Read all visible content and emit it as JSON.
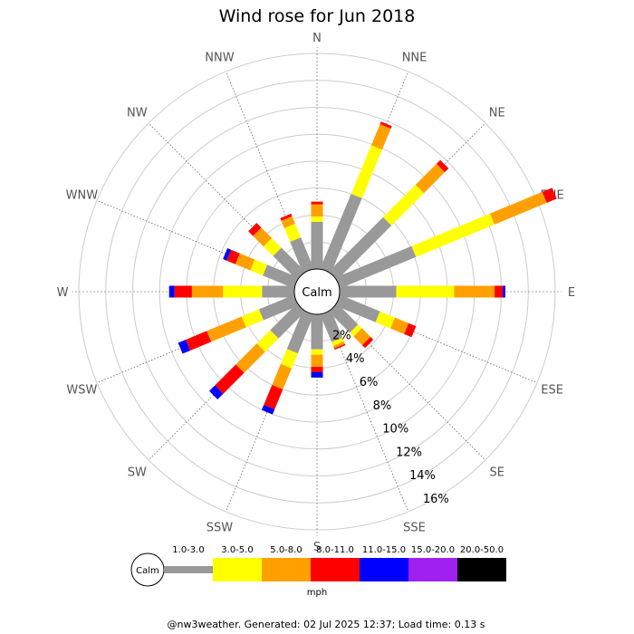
{
  "chart_data": {
    "type": "wind-rose",
    "title": "Wind rose for Jun 2018",
    "directions": [
      "N",
      "NNE",
      "NE",
      "ENE",
      "E",
      "ESE",
      "SE",
      "SSE",
      "S",
      "SSW",
      "SW",
      "WSW",
      "W",
      "WNW",
      "NW",
      "NNW"
    ],
    "center_label": "Calm",
    "ring_labels": [
      "2%",
      "4%",
      "6%",
      "8%",
      "10%",
      "12%",
      "14%",
      "16%"
    ],
    "rlim": [
      0,
      16
    ],
    "units": "mph",
    "speed_bins": [
      {
        "name": "1.0-3.0",
        "color": "#999999"
      },
      {
        "name": "3.0-5.0",
        "color": "#ffff00"
      },
      {
        "name": "5.0-8.0",
        "color": "#ffa000"
      },
      {
        "name": "8.0-11.0",
        "color": "#ff0000"
      },
      {
        "name": "11.0-15.0",
        "color": "#0000ff"
      },
      {
        "name": "15.0-20.0",
        "color": "#a020f0"
      },
      {
        "name": "20.0-50.0",
        "color": "#000000"
      }
    ],
    "series": [
      {
        "dir": "N",
        "values": [
          3.5,
          0.4,
          0.9,
          0.2,
          0,
          0,
          0
        ]
      },
      {
        "dir": "NNE",
        "values": [
          6.0,
          3.9,
          1.7,
          0.2,
          0,
          0,
          0
        ]
      },
      {
        "dir": "NE",
        "values": [
          5.7,
          3.4,
          2.2,
          0.4,
          0,
          0,
          0
        ]
      },
      {
        "dir": "ENE",
        "values": [
          6.1,
          6.3,
          4.2,
          0.8,
          0,
          0,
          0
        ]
      },
      {
        "dir": "E",
        "values": [
          4.2,
          4.3,
          3.0,
          0.6,
          0.2,
          0,
          0
        ]
      },
      {
        "dir": "ESE",
        "values": [
          3.2,
          1.2,
          1.1,
          0.6,
          0,
          0,
          0
        ]
      },
      {
        "dir": "SE",
        "values": [
          2.2,
          0.4,
          0.9,
          0.3,
          0,
          0,
          0
        ]
      },
      {
        "dir": "SSE",
        "values": [
          2.2,
          0.3,
          0.2,
          0.1,
          0,
          0,
          0
        ]
      },
      {
        "dir": "S",
        "values": [
          2.6,
          0.4,
          0.9,
          0.4,
          0.4,
          0,
          0
        ]
      },
      {
        "dir": "SSW",
        "values": [
          3.1,
          1.2,
          1.7,
          1.6,
          0.4,
          0,
          0
        ]
      },
      {
        "dir": "SW",
        "values": [
          2.8,
          1.4,
          2.2,
          2.2,
          0.6,
          0,
          0
        ]
      },
      {
        "dir": "WSW",
        "values": [
          2.8,
          1.4,
          2.8,
          1.7,
          0.6,
          0,
          0
        ]
      },
      {
        "dir": "W",
        "values": [
          2.4,
          2.9,
          2.3,
          1.3,
          0.4,
          0,
          0
        ]
      },
      {
        "dir": "WNW",
        "values": [
          2.5,
          1.0,
          1.2,
          0.7,
          0.3,
          0,
          0
        ]
      },
      {
        "dir": "NW",
        "values": [
          2.5,
          1.0,
          1.1,
          0.5,
          0,
          0,
          0
        ]
      },
      {
        "dir": "NNW",
        "values": [
          2.5,
          1.1,
          0.6,
          0.2,
          0,
          0,
          0
        ]
      }
    ]
  },
  "legend_units": "mph",
  "footer": "@nw3weather. Generated: 02 Jul 2025 12:37; Load time: 0.13 s"
}
